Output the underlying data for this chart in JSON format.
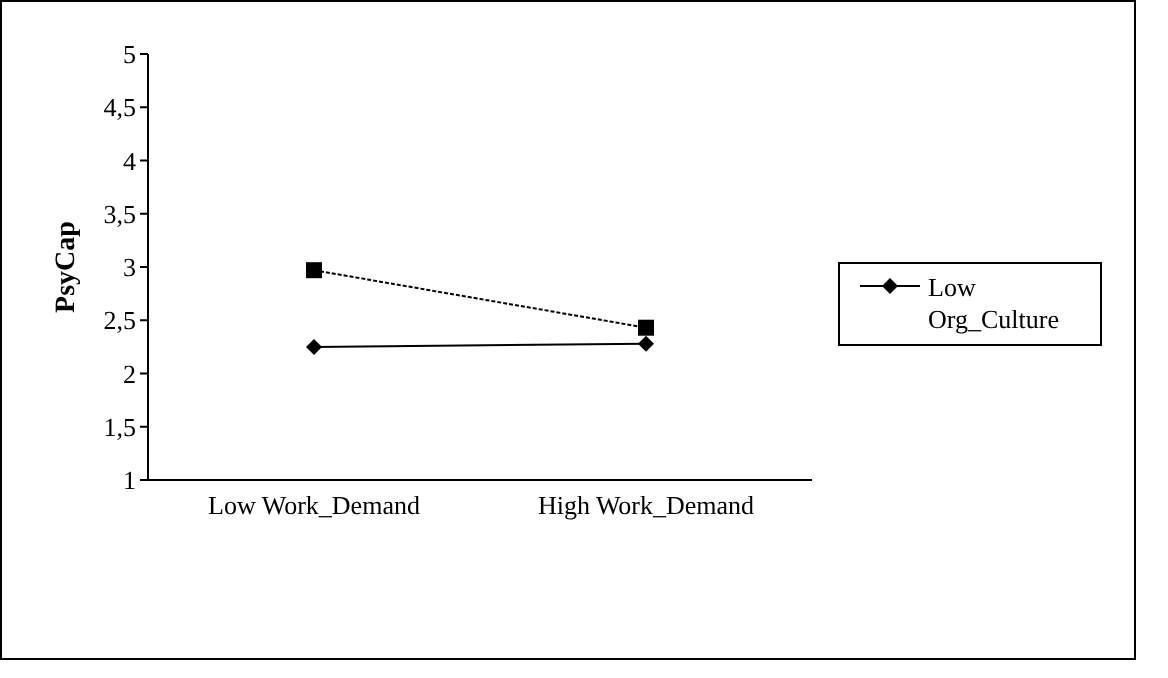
{
  "chart_data": {
    "type": "line",
    "ylabel": "PsyCap",
    "categories": [
      "Low Work_Demand",
      "High Work_Demand"
    ],
    "series": [
      {
        "name": "Low Org_Culture",
        "color": "#000000",
        "values": [
          2.25,
          2.28
        ],
        "marker": "diamond",
        "line_style": "solid"
      },
      {
        "color": "#000000",
        "values": [
          2.97,
          2.43
        ],
        "marker": "square",
        "line_style": "dashed"
      }
    ],
    "ylim": [
      1,
      5
    ],
    "yticks": [
      1,
      {
        "value": 1.5,
        "label": "1,5"
      },
      2,
      {
        "value": 2.5,
        "label": "2,5"
      },
      3,
      {
        "value": 3.5,
        "label": "3,5"
      },
      4,
      {
        "value": 4.5,
        "label": "4,5"
      },
      5
    ],
    "grid": false,
    "legend": "right"
  }
}
